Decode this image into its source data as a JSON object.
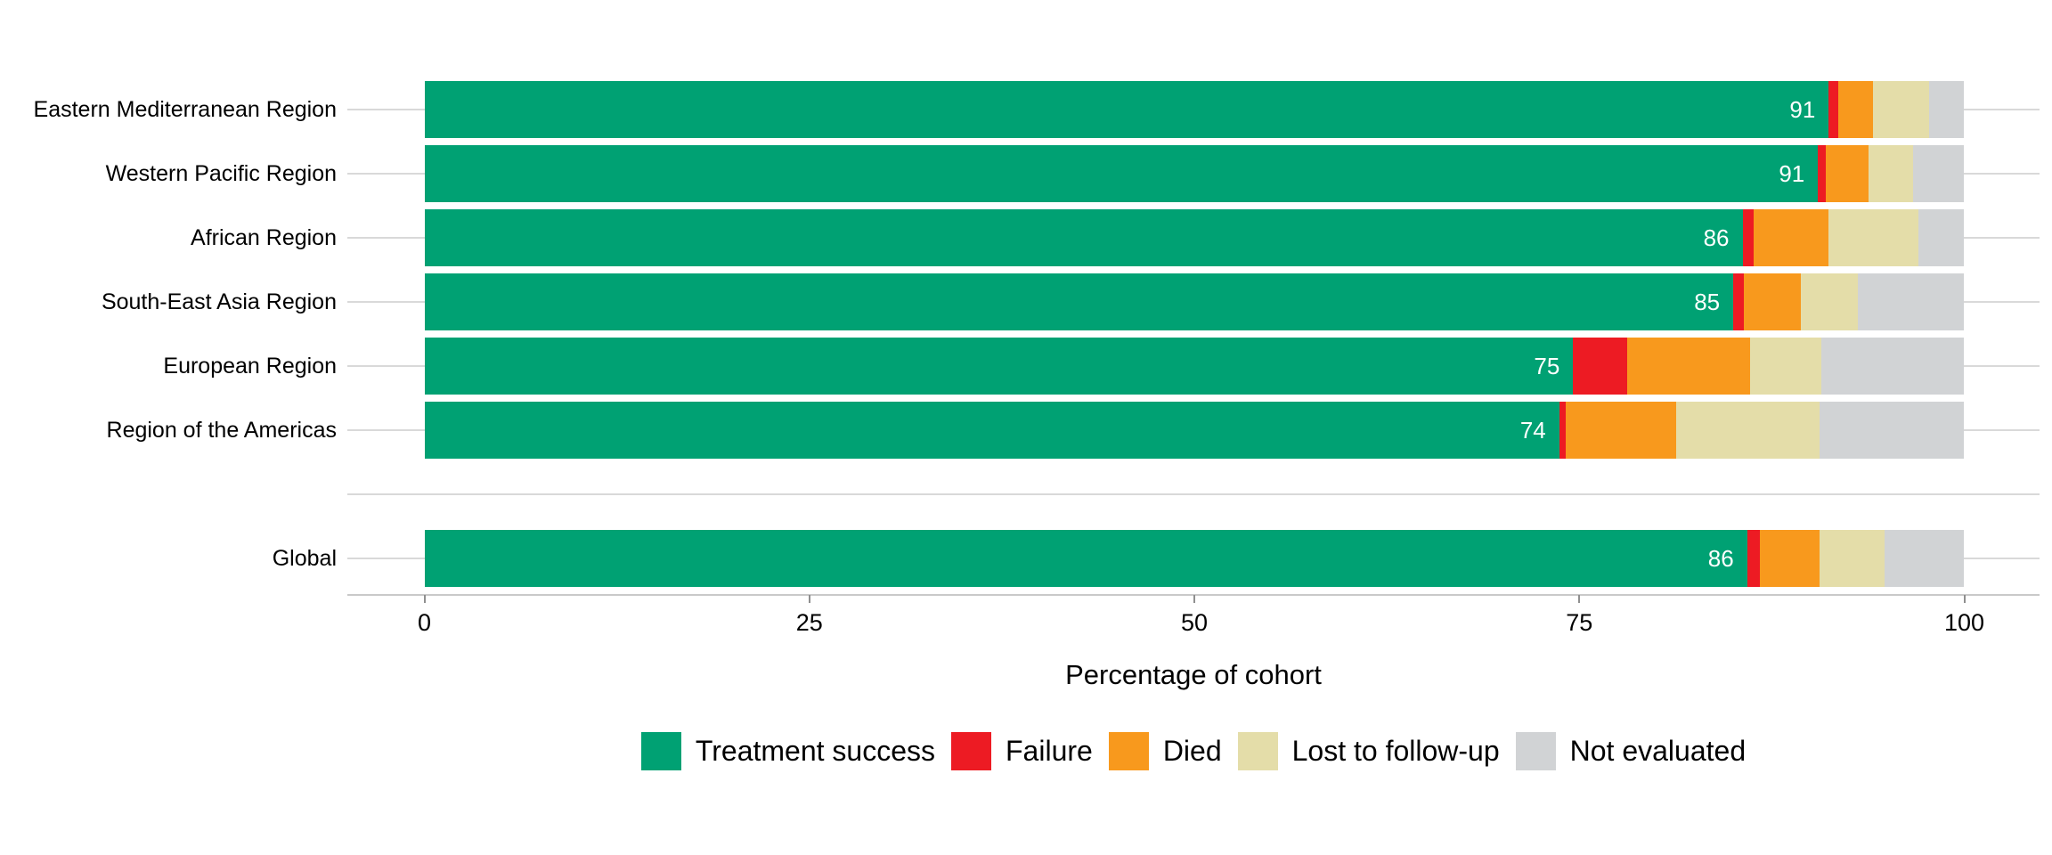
{
  "colors": {
    "treatment_success": "#00A173",
    "failure": "#ED1B23",
    "died": "#F8991D",
    "lost_to_follow_up": "#E4DDA9",
    "not_evaluated": "#D1D3D5",
    "gridline": "#D9D9D9",
    "axis_line": "#C9C9C9",
    "tick_mark": "#8F8F8F",
    "text": "#000000",
    "bar_value_text": "#FFFFFF",
    "background": "#FFFFFF"
  },
  "chart_data": {
    "type": "bar",
    "orientation": "horizontal",
    "stacked": true,
    "title": "",
    "xlabel": "Percentage of cohort",
    "ylabel": "",
    "xlim": [
      0,
      100
    ],
    "x_ticks": [
      "0",
      "25",
      "50",
      "75",
      "100"
    ],
    "x_tick_values": [
      0,
      25,
      50,
      75,
      100
    ],
    "grid": "horizontal row gridlines, light gray",
    "legend_position": "bottom",
    "categories": [
      "Eastern Mediterranean Region",
      "Western Pacific Region",
      "African Region",
      "South-East Asia Region",
      "European Region",
      "Region of the Americas",
      "Global"
    ],
    "group_break_after_index": 5,
    "series": [
      {
        "name": "Treatment success",
        "color": "#00A173",
        "values": [
          91.2,
          90.5,
          85.6,
          85.0,
          74.6,
          73.7,
          85.9
        ]
      },
      {
        "name": "Failure",
        "color": "#ED1B23",
        "values": [
          0.6,
          0.5,
          0.7,
          0.7,
          3.5,
          0.4,
          0.8
        ]
      },
      {
        "name": "Died",
        "color": "#F8991D",
        "values": [
          2.3,
          2.8,
          4.9,
          3.7,
          8.0,
          7.2,
          3.9
        ]
      },
      {
        "name": "Lost to follow-up",
        "color": "#E4DDA9",
        "values": [
          3.6,
          2.9,
          5.8,
          3.7,
          4.6,
          9.3,
          4.2
        ]
      },
      {
        "name": "Not evaluated",
        "color": "#D1D3D5",
        "values": [
          2.3,
          3.3,
          3.0,
          6.9,
          9.3,
          9.4,
          5.2
        ]
      }
    ],
    "bar_labels": [
      "91",
      "91",
      "86",
      "85",
      "75",
      "74",
      "86"
    ]
  },
  "legend": {
    "items": [
      {
        "label": "Treatment success",
        "color": "#00A173"
      },
      {
        "label": "Failure",
        "color": "#ED1B23"
      },
      {
        "label": "Died",
        "color": "#F8991D"
      },
      {
        "label": "Lost to follow-up",
        "color": "#E4DDA9"
      },
      {
        "label": "Not evaluated",
        "color": "#D1D3D5"
      }
    ]
  }
}
